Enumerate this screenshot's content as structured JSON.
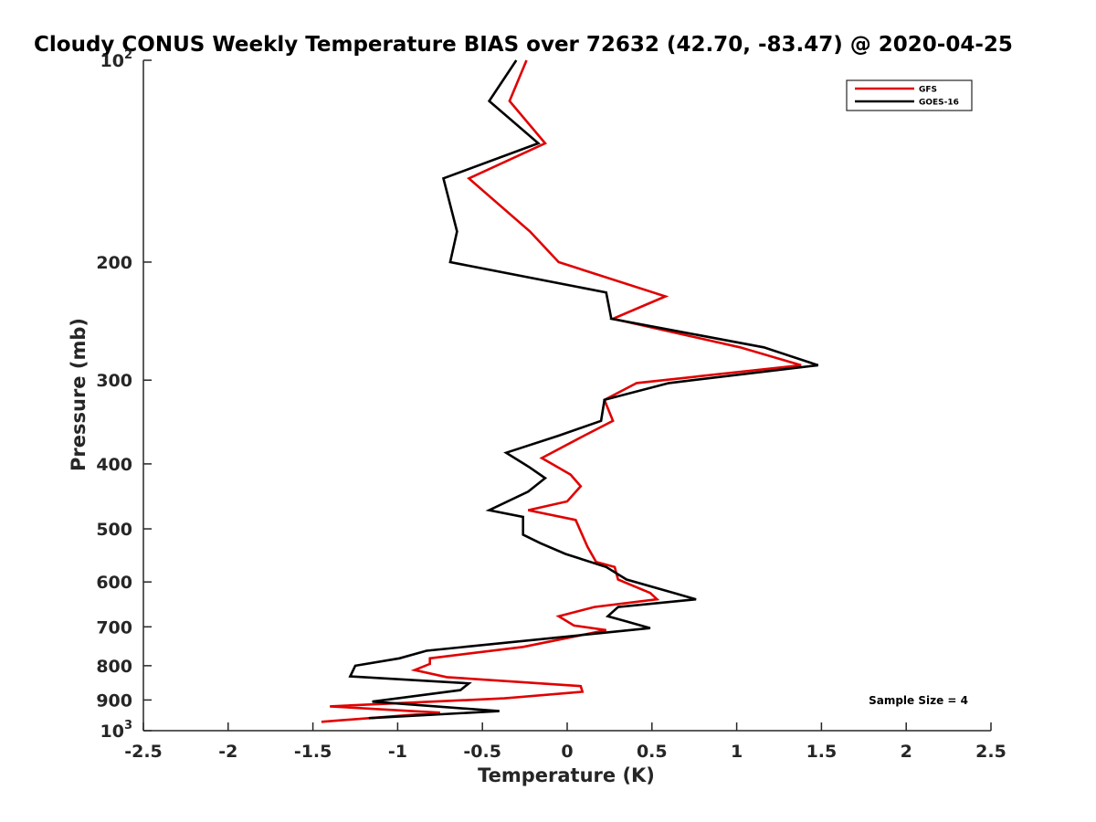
{
  "chart_data": {
    "type": "line",
    "title": "Cloudy CONUS Weekly Temperature BIAS over 72632 (42.70, -83.47) @ 2020-04-25",
    "xlabel": "Temperature (K)",
    "ylabel": "Pressure (mb)",
    "xlim": [
      -2.5,
      2.5
    ],
    "ylim": [
      100,
      1000
    ],
    "yscale": "log",
    "y_reversed": true,
    "x_ticks": [
      "-2.5",
      "-2",
      "-1.5",
      "-1",
      "-0.5",
      "0",
      "0.5",
      "1",
      "1.5",
      "2",
      "2.5"
    ],
    "y_ticks": [
      {
        "value": 100,
        "base": "10",
        "exp": "2"
      },
      {
        "value": 200,
        "label": "200"
      },
      {
        "value": 300,
        "label": "300"
      },
      {
        "value": 400,
        "label": "400"
      },
      {
        "value": 500,
        "label": "500"
      },
      {
        "value": 600,
        "label": "600"
      },
      {
        "value": 700,
        "label": "700"
      },
      {
        "value": 800,
        "label": "800"
      },
      {
        "value": 900,
        "label": "900"
      },
      {
        "value": 1000,
        "base": "10",
        "exp": "3"
      }
    ],
    "grid": false,
    "legend_position": "top-right",
    "annotation": "Sample Size = 4",
    "series": [
      {
        "name": "GFS",
        "color": "#e00000",
        "points": [
          [
            -0.24,
            100
          ],
          [
            -0.34,
            115
          ],
          [
            -0.13,
            133
          ],
          [
            -0.58,
            150
          ],
          [
            -0.22,
            180
          ],
          [
            -0.05,
            200
          ],
          [
            0.58,
            225
          ],
          [
            0.27,
            243
          ],
          [
            1.02,
            268
          ],
          [
            1.38,
            285
          ],
          [
            0.41,
            303
          ],
          [
            0.22,
            321
          ],
          [
            0.27,
            345
          ],
          [
            0.1,
            363
          ],
          [
            -0.15,
            392
          ],
          [
            0.02,
            415
          ],
          [
            0.08,
            432
          ],
          [
            0.0,
            455
          ],
          [
            -0.23,
            469
          ],
          [
            0.05,
            485
          ],
          [
            0.12,
            532
          ],
          [
            0.17,
            560
          ],
          [
            0.28,
            570
          ],
          [
            0.3,
            595
          ],
          [
            0.49,
            623
          ],
          [
            0.53,
            637
          ],
          [
            0.16,
            654
          ],
          [
            -0.05,
            675
          ],
          [
            0.04,
            697
          ],
          [
            0.23,
            708
          ],
          [
            -0.26,
            750
          ],
          [
            -0.81,
            780
          ],
          [
            -0.81,
            795
          ],
          [
            -0.9,
            812
          ],
          [
            -0.71,
            832
          ],
          [
            0.08,
            858
          ],
          [
            0.09,
            875
          ],
          [
            -0.37,
            895
          ],
          [
            -1.4,
            920
          ],
          [
            -0.75,
            940
          ],
          [
            -1.45,
            970
          ]
        ]
      },
      {
        "name": "GOES-16",
        "color": "#000000",
        "points": [
          [
            -0.3,
            100
          ],
          [
            -0.46,
            115
          ],
          [
            -0.17,
            133
          ],
          [
            -0.73,
            150
          ],
          [
            -0.65,
            180
          ],
          [
            -0.69,
            200
          ],
          [
            0.23,
            222
          ],
          [
            0.26,
            243
          ],
          [
            1.16,
            268
          ],
          [
            1.48,
            285
          ],
          [
            0.6,
            303
          ],
          [
            0.22,
            321
          ],
          [
            0.2,
            345
          ],
          [
            -0.05,
            363
          ],
          [
            -0.36,
            385
          ],
          [
            -0.22,
            405
          ],
          [
            -0.13,
            420
          ],
          [
            -0.23,
            440
          ],
          [
            -0.46,
            469
          ],
          [
            -0.26,
            480
          ],
          [
            -0.26,
            510
          ],
          [
            -0.16,
            525
          ],
          [
            -0.01,
            545
          ],
          [
            0.23,
            570
          ],
          [
            0.35,
            595
          ],
          [
            0.63,
            623
          ],
          [
            0.76,
            637
          ],
          [
            0.3,
            654
          ],
          [
            0.24,
            675
          ],
          [
            0.34,
            686
          ],
          [
            0.49,
            703
          ],
          [
            -0.83,
            760
          ],
          [
            -0.99,
            780
          ],
          [
            -1.25,
            800
          ],
          [
            -1.28,
            830
          ],
          [
            -0.58,
            850
          ],
          [
            -0.63,
            870
          ],
          [
            -1.15,
            905
          ],
          [
            -0.4,
            935
          ],
          [
            -1.17,
            958
          ]
        ]
      }
    ]
  }
}
